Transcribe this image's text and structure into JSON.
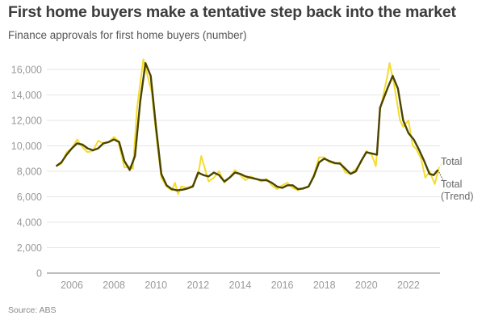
{
  "title": "First home buyers make a tentative step back into the market",
  "subtitle": "Finance approvals for first home buyers (number)",
  "source": "Source: ABS",
  "colors": {
    "total": "#f4dc2c",
    "trend": "#4a4300",
    "grid": "#e6e6e6",
    "axis": "#999999"
  },
  "chart_data": {
    "type": "line",
    "title": "First home buyers make a tentative step back into the market",
    "subtitle": "Finance approvals for first home buyers (number)",
    "xlabel": "",
    "ylabel": "",
    "ylim": [
      0,
      16000
    ],
    "xlim": [
      2005,
      2023.6
    ],
    "grid": true,
    "yticks": [
      "0",
      "2,000",
      "4,000",
      "6,000",
      "8,000",
      "10,000",
      "12,000",
      "14,000",
      "16,000"
    ],
    "ytick_values": [
      0,
      2000,
      4000,
      6000,
      8000,
      10000,
      12000,
      14000,
      16000
    ],
    "xticks": [
      "2006",
      "2008",
      "2010",
      "2012",
      "2014",
      "2016",
      "2018",
      "2020",
      "2022"
    ],
    "xtick_values": [
      2006,
      2008,
      2010,
      2012,
      2014,
      2016,
      2018,
      2020,
      2022
    ],
    "legend": "end-labels",
    "series": [
      {
        "name": "Total",
        "x": [
          2005.25,
          2005.5,
          2005.75,
          2006.0,
          2006.25,
          2006.5,
          2006.75,
          2007.0,
          2007.25,
          2007.5,
          2007.75,
          2008.0,
          2008.2,
          2008.5,
          2008.75,
          2008.9,
          2009.1,
          2009.4,
          2009.6,
          2009.8,
          2010.0,
          2010.25,
          2010.5,
          2010.75,
          2010.9,
          2011.05,
          2011.2,
          2011.5,
          2011.75,
          2012.0,
          2012.15,
          2012.5,
          2012.75,
          2013.0,
          2013.25,
          2013.5,
          2013.75,
          2014.0,
          2014.25,
          2014.5,
          2014.75,
          2015.0,
          2015.25,
          2015.5,
          2015.75,
          2016.0,
          2016.25,
          2016.5,
          2016.75,
          2017.0,
          2017.25,
          2017.5,
          2017.75,
          2018.0,
          2018.25,
          2018.5,
          2018.75,
          2019.0,
          2019.25,
          2019.5,
          2019.75,
          2020.0,
          2020.25,
          2020.45,
          2020.65,
          2021.0,
          2021.1,
          2021.3,
          2021.6,
          2021.75,
          2022.0,
          2022.2,
          2022.35,
          2022.6,
          2022.8,
          2023.0,
          2023.25,
          2023.45
        ],
        "values": [
          8400,
          8600,
          9500,
          9800,
          10500,
          9900,
          9500,
          9600,
          10400,
          10200,
          10300,
          10700,
          10400,
          8300,
          8400,
          8200,
          13000,
          16800,
          15500,
          14200,
          11000,
          7500,
          6800,
          6500,
          7100,
          6200,
          6800,
          6700,
          6900,
          7700,
          9200,
          7200,
          7500,
          8000,
          7100,
          7500,
          8100,
          7700,
          7300,
          7600,
          7400,
          7200,
          7400,
          6900,
          6600,
          6900,
          7100,
          6700,
          6500,
          6700,
          6800,
          7700,
          9100,
          9100,
          8700,
          8600,
          8700,
          7900,
          7800,
          8200,
          8700,
          9600,
          9300,
          8400,
          12800,
          15500,
          16500,
          15000,
          12000,
          11500,
          12000,
          10000,
          9800,
          9000,
          7500,
          8000,
          7000,
          8300
        ]
      },
      {
        "name": "Total (Trend)",
        "x": [
          2005.25,
          2005.5,
          2005.75,
          2006.0,
          2006.25,
          2006.5,
          2006.75,
          2007.0,
          2007.25,
          2007.5,
          2007.75,
          2008.0,
          2008.25,
          2008.5,
          2008.75,
          2009.0,
          2009.25,
          2009.5,
          2009.75,
          2010.0,
          2010.25,
          2010.5,
          2010.75,
          2011.0,
          2011.25,
          2011.5,
          2011.75,
          2012.0,
          2012.25,
          2012.5,
          2012.75,
          2013.0,
          2013.25,
          2013.5,
          2013.75,
          2014.0,
          2014.25,
          2014.5,
          2014.75,
          2015.0,
          2015.25,
          2015.5,
          2015.75,
          2016.0,
          2016.25,
          2016.5,
          2016.75,
          2017.0,
          2017.25,
          2017.5,
          2017.75,
          2018.0,
          2018.25,
          2018.5,
          2018.75,
          2019.0,
          2019.25,
          2019.5,
          2019.75,
          2020.0,
          2020.25,
          2020.5,
          2020.65,
          2021.0,
          2021.25,
          2021.5,
          2021.75,
          2022.0,
          2022.25,
          2022.5,
          2022.75,
          2023.0,
          2023.2,
          2023.4
        ],
        "values": [
          8400,
          8700,
          9300,
          9800,
          10200,
          10100,
          9800,
          9650,
          9800,
          10200,
          10300,
          10500,
          10300,
          8800,
          8100,
          9200,
          13500,
          16500,
          15500,
          11500,
          7800,
          6900,
          6600,
          6500,
          6550,
          6650,
          6800,
          7900,
          7700,
          7600,
          7900,
          7700,
          7200,
          7500,
          7900,
          7800,
          7600,
          7500,
          7400,
          7300,
          7300,
          7100,
          6800,
          6700,
          6900,
          6900,
          6600,
          6650,
          6800,
          7600,
          8700,
          9000,
          8800,
          8650,
          8600,
          8200,
          7800,
          8000,
          8800,
          9500,
          9400,
          9300,
          13000,
          14500,
          15500,
          14500,
          12000,
          11000,
          10500,
          9700,
          8800,
          7800,
          7700,
          8100
        ]
      }
    ]
  }
}
